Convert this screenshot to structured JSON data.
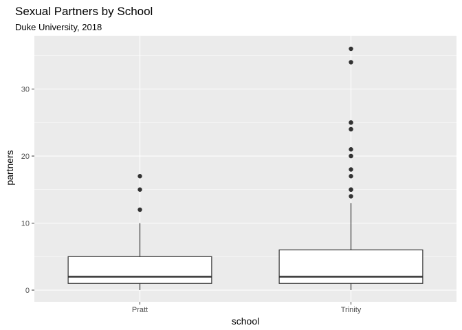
{
  "chart_data": {
    "type": "boxplot",
    "title": "Sexual Partners by School",
    "subtitle": "Duke University, 2018",
    "xlabel": "school",
    "ylabel": "partners",
    "ylim": [
      -2,
      38
    ],
    "yticks": [
      0,
      10,
      20,
      30
    ],
    "grid": true,
    "legend": "none",
    "categories": [
      "Pratt",
      "Trinity"
    ],
    "boxes": [
      {
        "category": "Pratt",
        "whisker_low": 0,
        "q1": 1,
        "median": 2,
        "q3": 5,
        "whisker_high": 10,
        "outliers": [
          12,
          15,
          17
        ]
      },
      {
        "category": "Trinity",
        "whisker_low": 0,
        "q1": 1,
        "median": 2,
        "q3": 6,
        "whisker_high": 13,
        "outliers": [
          14,
          15,
          15,
          17,
          18,
          20,
          20,
          21,
          24,
          24,
          25,
          25,
          34,
          36
        ]
      }
    ],
    "colors": {
      "panel": "#ebebeb",
      "grid_major": "#ffffff",
      "box_fill": "#ffffff",
      "box_line": "#333333",
      "point": "#333333",
      "tick_text": "#4d4d4d",
      "tick_mark": "#333333"
    }
  }
}
